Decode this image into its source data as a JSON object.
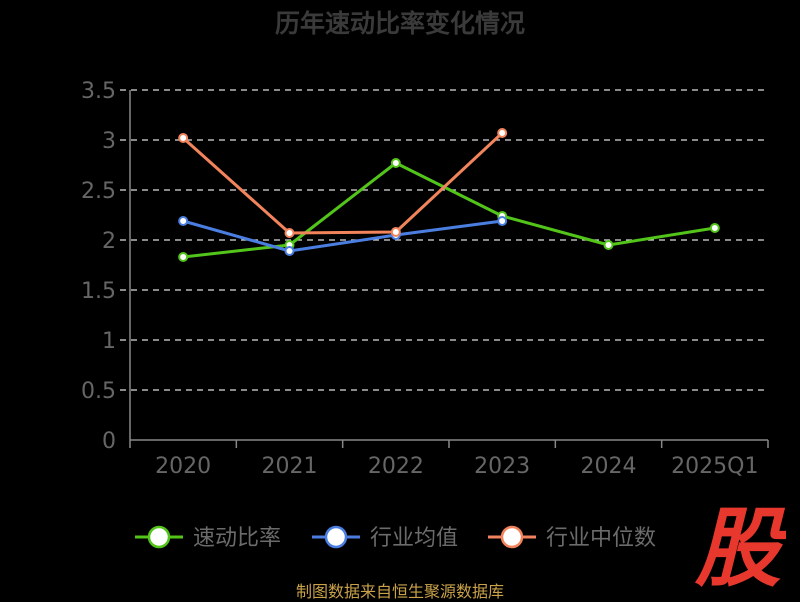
{
  "title": "历年速动比率变化情况",
  "source_text": "制图数据来自恒生聚源数据库",
  "logo": {
    "text": "股",
    "color": "#e8382e"
  },
  "colors": {
    "background": "#000000",
    "grid": "#dddddd",
    "axis": "#888888",
    "tick_text": "#666666",
    "legend_text": "#6b6b6b"
  },
  "chart_data": {
    "type": "line",
    "categories": [
      "2020",
      "2021",
      "2022",
      "2023",
      "2024",
      "2025Q1"
    ],
    "ylim": [
      0,
      3.5
    ],
    "yticks": [
      "0",
      "0.5",
      "1",
      "1.5",
      "2",
      "2.5",
      "3",
      "3.5"
    ],
    "grid": true,
    "legend_position": "bottom",
    "series": [
      {
        "name": "速动比率",
        "color": "#52c41a",
        "values": [
          1.83,
          1.95,
          2.77,
          2.24,
          1.95,
          2.12
        ]
      },
      {
        "name": "行业均值",
        "color": "#4a7ee0",
        "values": [
          2.19,
          1.89,
          2.05,
          2.19,
          null,
          null
        ]
      },
      {
        "name": "行业中位数",
        "color": "#f2845c",
        "values": [
          3.02,
          2.07,
          2.08,
          3.07,
          null,
          null
        ]
      }
    ]
  }
}
